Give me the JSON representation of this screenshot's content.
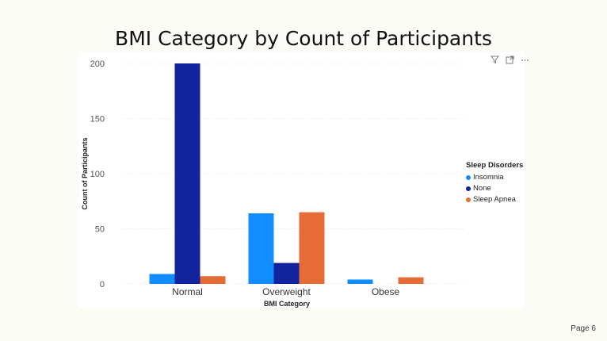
{
  "title": "BMI Category by Count of Participants",
  "page_label": "Page 6",
  "header_icons": [
    "filter-icon",
    "focus-mode-icon",
    "more-options-icon"
  ],
  "colors": {
    "Insomnia": "#118dff",
    "None": "#12239e",
    "Sleep Apnea": "#e66c37"
  },
  "chart_data": {
    "type": "bar",
    "title": "BMI Category by Count of Participants",
    "xlabel": "BMI Category",
    "ylabel": "Count of Participants",
    "categories": [
      "Normal",
      "Overweight",
      "Obese"
    ],
    "series": [
      {
        "name": "Insomnia",
        "values": [
          9,
          64,
          4
        ]
      },
      {
        "name": "None",
        "values": [
          200,
          19,
          0
        ]
      },
      {
        "name": "Sleep Apnea",
        "values": [
          7,
          65,
          6
        ]
      }
    ],
    "ylim": [
      0,
      200
    ],
    "yticks": [
      0,
      50,
      100,
      150,
      200
    ],
    "grid": true,
    "legend": {
      "title": "Sleep Disorders",
      "placement": "right"
    }
  }
}
